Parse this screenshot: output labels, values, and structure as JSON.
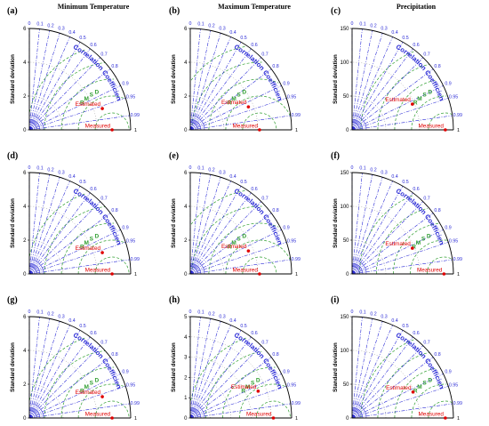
{
  "figure": {
    "column_titles": [
      "Minimum Temperature",
      "Maximum Temperature",
      "Precipitation"
    ],
    "ylabel": "Standard deviation",
    "correlation_title": "Correlation Coefficient",
    "rmsd_label": "R M S D",
    "corr_one_label": "1",
    "legend_point_labels": {
      "measured": "Measured",
      "estimated": "Estimated"
    }
  },
  "colors": {
    "axis": "#000000",
    "correlation": "#2b2bd6",
    "rmsd": "#2e9e2e",
    "points": "#e00000"
  },
  "chart_data": [
    {
      "type": "scatter",
      "panel": "(a)",
      "title": "Minimum Temperature",
      "xlabel": "",
      "ylabel": "Standard deviation",
      "ylim": [
        0,
        6
      ],
      "y_ticks": [
        0,
        2,
        4,
        6
      ],
      "correlation_ticks": [
        0,
        0.1,
        0.2,
        0.3,
        0.4,
        0.5,
        0.6,
        0.7,
        0.8,
        0.9,
        0.95,
        0.99
      ],
      "reference_std": 4.9,
      "points": [
        {
          "name": "Measured",
          "std": 4.9,
          "corr": 1.0
        },
        {
          "name": "Estimated",
          "std": 4.5,
          "corr": 0.96
        }
      ]
    },
    {
      "type": "scatter",
      "panel": "(b)",
      "title": "Maximum Temperature",
      "xlabel": "",
      "ylabel": "Standard deviation",
      "ylim": [
        0,
        6
      ],
      "y_ticks": [
        0,
        2,
        4,
        6
      ],
      "correlation_ticks": [
        0,
        0.1,
        0.2,
        0.3,
        0.4,
        0.5,
        0.6,
        0.7,
        0.8,
        0.9,
        0.95,
        0.99
      ],
      "reference_std": 4.1,
      "points": [
        {
          "name": "Measured",
          "std": 4.1,
          "corr": 1.0
        },
        {
          "name": "Estimated",
          "std": 3.7,
          "corr": 0.93
        }
      ]
    },
    {
      "type": "scatter",
      "panel": "(c)",
      "title": "Precipitation",
      "xlabel": "",
      "ylabel": "Standard deviation",
      "ylim": [
        0,
        150
      ],
      "y_ticks": [
        0,
        50,
        100,
        150
      ],
      "correlation_ticks": [
        0,
        0.1,
        0.2,
        0.3,
        0.4,
        0.5,
        0.6,
        0.7,
        0.8,
        0.9,
        0.95,
        0.99
      ],
      "reference_std": 138,
      "points": [
        {
          "name": "Measured",
          "std": 138,
          "corr": 1.0
        },
        {
          "name": "Estimated",
          "std": 97,
          "corr": 0.92
        }
      ]
    },
    {
      "type": "scatter",
      "panel": "(d)",
      "title": "",
      "xlabel": "",
      "ylabel": "Standard deviation",
      "ylim": [
        0,
        6
      ],
      "y_ticks": [
        0,
        2,
        4,
        6
      ],
      "correlation_ticks": [
        0,
        0.1,
        0.2,
        0.3,
        0.4,
        0.5,
        0.6,
        0.7,
        0.8,
        0.9,
        0.95,
        0.99
      ],
      "reference_std": 4.9,
      "points": [
        {
          "name": "Measured",
          "std": 4.9,
          "corr": 1.0
        },
        {
          "name": "Estimated",
          "std": 4.5,
          "corr": 0.96
        }
      ]
    },
    {
      "type": "scatter",
      "panel": "(e)",
      "title": "",
      "xlabel": "",
      "ylabel": "Standard deviation",
      "ylim": [
        0,
        6
      ],
      "y_ticks": [
        0,
        2,
        4,
        6
      ],
      "correlation_ticks": [
        0,
        0.1,
        0.2,
        0.3,
        0.4,
        0.5,
        0.6,
        0.7,
        0.8,
        0.9,
        0.95,
        0.99
      ],
      "reference_std": 4.1,
      "points": [
        {
          "name": "Measured",
          "std": 4.1,
          "corr": 1.0
        },
        {
          "name": "Estimated",
          "std": 3.7,
          "corr": 0.93
        }
      ]
    },
    {
      "type": "scatter",
      "panel": "(f)",
      "title": "",
      "xlabel": "",
      "ylabel": "Standard deviation",
      "ylim": [
        0,
        150
      ],
      "y_ticks": [
        0,
        50,
        100,
        150
      ],
      "correlation_ticks": [
        0,
        0.1,
        0.2,
        0.3,
        0.4,
        0.5,
        0.6,
        0.7,
        0.8,
        0.9,
        0.95,
        0.99
      ],
      "reference_std": 136,
      "points": [
        {
          "name": "Measured",
          "std": 136,
          "corr": 1.0
        },
        {
          "name": "Estimated",
          "std": 97,
          "corr": 0.92
        }
      ]
    },
    {
      "type": "scatter",
      "panel": "(g)",
      "title": "",
      "xlabel": "",
      "ylabel": "Standard deviation",
      "ylim": [
        0,
        6
      ],
      "y_ticks": [
        0,
        2,
        4,
        6
      ],
      "correlation_ticks": [
        0,
        0.1,
        0.2,
        0.3,
        0.4,
        0.5,
        0.6,
        0.7,
        0.8,
        0.9,
        0.95,
        0.99
      ],
      "reference_std": 4.9,
      "points": [
        {
          "name": "Measured",
          "std": 4.9,
          "corr": 1.0
        },
        {
          "name": "Estimated",
          "std": 4.5,
          "corr": 0.96
        }
      ]
    },
    {
      "type": "scatter",
      "panel": "(h)",
      "title": "",
      "xlabel": "",
      "ylabel": "Standard deviation",
      "ylim": [
        0,
        5
      ],
      "y_ticks": [
        0,
        1,
        2,
        3,
        4,
        5
      ],
      "correlation_ticks": [
        0,
        0.1,
        0.2,
        0.3,
        0.4,
        0.5,
        0.6,
        0.7,
        0.8,
        0.9,
        0.95,
        0.99
      ],
      "reference_std": 4.1,
      "points": [
        {
          "name": "Measured",
          "std": 4.1,
          "corr": 1.0
        },
        {
          "name": "Estimated",
          "std": 3.6,
          "corr": 0.93
        }
      ]
    },
    {
      "type": "scatter",
      "panel": "(i)",
      "title": "",
      "xlabel": "",
      "ylabel": "Standard deviation",
      "ylim": [
        0,
        150
      ],
      "y_ticks": [
        0,
        50,
        100,
        150
      ],
      "correlation_ticks": [
        0,
        0.1,
        0.2,
        0.3,
        0.4,
        0.5,
        0.6,
        0.7,
        0.8,
        0.9,
        0.95,
        0.99
      ],
      "reference_std": 138,
      "points": [
        {
          "name": "Measured",
          "std": 138,
          "corr": 1.0
        },
        {
          "name": "Estimated",
          "std": 98,
          "corr": 0.92
        }
      ]
    }
  ]
}
